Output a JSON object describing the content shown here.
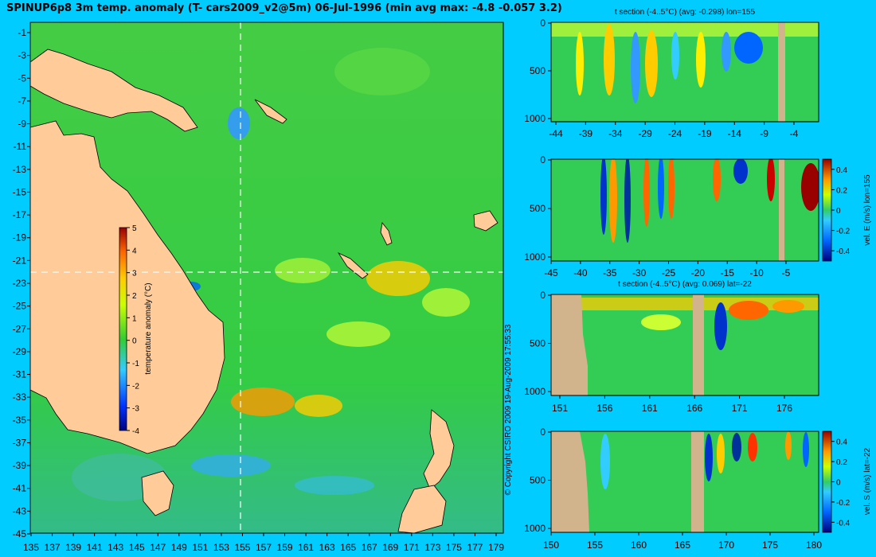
{
  "title": "SPINUP6p8 3m temp. anomaly (T- cars2009_v2@5m) 06-Jul-1996 (min avg max: -4.8 -0.057 3.2)",
  "copyright": "© Copyright CSIRO 2009   19-Aug-2009 17:55:33",
  "colors": {
    "background": "#00ccff",
    "land": "#ffcc99",
    "section_land": "#d2b48c",
    "ocean_base": "#33cc33"
  },
  "chart_data": [
    {
      "type": "heatmap",
      "name": "map",
      "x_ticks": [
        "135",
        "137",
        "139",
        "141",
        "143",
        "145",
        "147",
        "149",
        "151",
        "153",
        "155",
        "157",
        "159",
        "161",
        "163",
        "165",
        "167",
        "169",
        "171",
        "173",
        "175",
        "177",
        "179"
      ],
      "y_ticks": [
        "-1",
        "-3",
        "-5",
        "-7",
        "-9",
        "-11",
        "-13",
        "-15",
        "-17",
        "-19",
        "-21",
        "-23",
        "-25",
        "-27",
        "-29",
        "-31",
        "-33",
        "-35",
        "-37",
        "-39",
        "-41",
        "-43",
        "-45"
      ],
      "xlim": [
        135,
        180
      ],
      "ylim": [
        -45,
        0
      ],
      "crosshair": {
        "lon": 155,
        "lat": -22
      },
      "colorbar": {
        "label": "temperature anomaly (°C)",
        "ticks": [
          "5",
          "4",
          "3",
          "2",
          "1",
          "0",
          "-1",
          "-2",
          "-3",
          "-4"
        ],
        "range": [
          -4,
          5
        ]
      }
    },
    {
      "type": "heatmap",
      "name": "section-t-lon",
      "title": "t section (-4..5°C) (avg: -0.298) lon=155",
      "x_ticks": [
        "-44",
        "-39",
        "-34",
        "-29",
        "-24",
        "-19",
        "-14",
        "-9",
        "-4"
      ],
      "y_ticks": [
        "0",
        "500",
        "1000"
      ]
    },
    {
      "type": "heatmap",
      "name": "section-vel-e",
      "x_ticks": [
        "-45",
        "-40",
        "-35",
        "-30",
        "-25",
        "-20",
        "-15",
        "-10",
        "-5"
      ],
      "y_ticks": [
        "0",
        "500",
        "1000"
      ],
      "colorbar": {
        "label": "vel. E (m/s) lon=155",
        "ticks": [
          "0.4",
          "0.2",
          "0",
          "-0.2",
          "-0.4"
        ]
      }
    },
    {
      "type": "heatmap",
      "name": "section-t-lat",
      "title": "t section (-4..5°C) (avg: 0.069) lat=-22",
      "x_ticks": [
        "151",
        "156",
        "161",
        "166",
        "171",
        "176"
      ],
      "y_ticks": [
        "0",
        "500",
        "1000"
      ]
    },
    {
      "type": "heatmap",
      "name": "section-vel-s",
      "x_ticks": [
        "150",
        "155",
        "160",
        "165",
        "170",
        "175",
        "180"
      ],
      "y_ticks": [
        "0",
        "500",
        "1000"
      ],
      "colorbar": {
        "label": "vel. S (m/s) lat=-22",
        "ticks": [
          "0.4",
          "0.2",
          "0",
          "-0.2",
          "-0.4"
        ]
      }
    }
  ]
}
